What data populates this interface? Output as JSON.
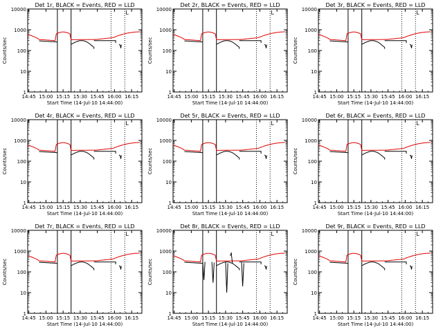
{
  "figure": {
    "y_axis_label": "Counts/sec",
    "x_axis_label": "Start Time (14-Jul-10 14:44:00)",
    "legend_mark": "L",
    "colors": {
      "events": "#000000",
      "lld": "#e00000",
      "axes": "#000000"
    }
  },
  "chart_data": [
    {
      "type": "line",
      "title": "Det 1r, BLACK = Events, RED = LLD",
      "xlabel": "Start Time (14-Jul-10 14:44:00)",
      "ylabel": "Counts/sec",
      "y_scale": "log",
      "ylim": [
        1,
        10000
      ],
      "y_ticks": [
        "1",
        "10",
        "100",
        "1000",
        "10000"
      ],
      "x_ticks": [
        "14:45",
        "15:00",
        "15:15",
        "15:30",
        "15:45",
        "16:00",
        "16:15"
      ],
      "series": [
        {
          "name": "Events",
          "color": "#000000"
        },
        {
          "name": "LLD",
          "color": "#e00000"
        }
      ],
      "variant": 0
    },
    {
      "type": "line",
      "title": "Det 2r, BLACK = Events, RED = LLD",
      "xlabel": "Start Time (14-Jul-10 14:44:00)",
      "ylabel": "Counts/sec",
      "y_scale": "log",
      "ylim": [
        1,
        10000
      ],
      "y_ticks": [
        "1",
        "10",
        "100",
        "1000",
        "10000"
      ],
      "x_ticks": [
        "14:45",
        "15:00",
        "15:15",
        "15:30",
        "15:45",
        "16:00",
        "16:15"
      ],
      "series": [
        {
          "name": "Events",
          "color": "#000000"
        },
        {
          "name": "LLD",
          "color": "#e00000"
        }
      ],
      "variant": 0
    },
    {
      "type": "line",
      "title": "Det 3r, BLACK = Events, RED = LLD",
      "xlabel": "Start Time (14-Jul-10 14:44:00)",
      "ylabel": "Counts/sec",
      "y_scale": "log",
      "ylim": [
        1,
        10000
      ],
      "y_ticks": [
        "1",
        "10",
        "100",
        "1000",
        "10000"
      ],
      "x_ticks": [
        "14:45",
        "15:00",
        "15:15",
        "15:30",
        "15:45",
        "16:00",
        "16:15"
      ],
      "series": [
        {
          "name": "Events",
          "color": "#000000"
        },
        {
          "name": "LLD",
          "color": "#e00000"
        }
      ],
      "variant": 0
    },
    {
      "type": "line",
      "title": "Det 4r, BLACK = Events, RED = LLD",
      "xlabel": "Start Time (14-Jul-10 14:44:00)",
      "ylabel": "Counts/sec",
      "y_scale": "log",
      "ylim": [
        1,
        10000
      ],
      "y_ticks": [
        "1",
        "10",
        "100",
        "1000",
        "10000"
      ],
      "x_ticks": [
        "14:45",
        "15:00",
        "15:15",
        "15:30",
        "15:45",
        "16:00",
        "16:15"
      ],
      "series": [
        {
          "name": "Events",
          "color": "#000000"
        },
        {
          "name": "LLD",
          "color": "#e00000"
        }
      ],
      "variant": 0
    },
    {
      "type": "line",
      "title": "Det 5r, BLACK = Events, RED = LLD",
      "xlabel": "Start Time (14-Jul-10 14:44:00)",
      "ylabel": "Counts/sec",
      "y_scale": "log",
      "ylim": [
        1,
        10000
      ],
      "y_ticks": [
        "1",
        "10",
        "100",
        "1000",
        "10000"
      ],
      "x_ticks": [
        "14:45",
        "15:00",
        "15:15",
        "15:30",
        "15:45",
        "16:00",
        "16:15"
      ],
      "series": [
        {
          "name": "Events",
          "color": "#000000"
        },
        {
          "name": "LLD",
          "color": "#e00000"
        }
      ],
      "variant": 0
    },
    {
      "type": "line",
      "title": "Det 6r, BLACK = Events, RED = LLD",
      "xlabel": "Start Time (14-Jul-10 14:44:00)",
      "ylabel": "Counts/sec",
      "y_scale": "log",
      "ylim": [
        1,
        10000
      ],
      "y_ticks": [
        "1",
        "10",
        "100",
        "1000",
        "10000"
      ],
      "x_ticks": [
        "14:45",
        "15:00",
        "15:15",
        "15:30",
        "15:45",
        "16:00",
        "16:15"
      ],
      "series": [
        {
          "name": "Events",
          "color": "#000000"
        },
        {
          "name": "LLD",
          "color": "#e00000"
        }
      ],
      "variant": 0
    },
    {
      "type": "line",
      "title": "Det 7r, BLACK = Events, RED = LLD",
      "xlabel": "Start Time (14-Jul-10 14:44:00)",
      "ylabel": "Counts/sec",
      "y_scale": "log",
      "ylim": [
        1,
        10000
      ],
      "y_ticks": [
        "1",
        "10",
        "100",
        "1000",
        "10000"
      ],
      "x_ticks": [
        "14:45",
        "15:00",
        "15:15",
        "15:30",
        "15:45",
        "16:00",
        "16:15"
      ],
      "series": [
        {
          "name": "Events",
          "color": "#000000"
        },
        {
          "name": "LLD",
          "color": "#e00000"
        }
      ],
      "variant": 0
    },
    {
      "type": "line",
      "title": "Det 8r, BLACK = Events, RED = LLD",
      "xlabel": "Start Time (14-Jul-10 14:44:00)",
      "ylabel": "Counts/sec",
      "y_scale": "log",
      "ylim": [
        1,
        10000
      ],
      "y_ticks": [
        "1",
        "10",
        "100",
        "1000",
        "10000"
      ],
      "x_ticks": [
        "14:45",
        "15:00",
        "15:15",
        "15:30",
        "15:45",
        "16:00",
        "16:15"
      ],
      "series": [
        {
          "name": "Events",
          "color": "#000000"
        },
        {
          "name": "LLD",
          "color": "#e00000"
        }
      ],
      "variant": 1
    },
    {
      "type": "line",
      "title": "Det 9r, BLACK = Events, RED = LLD",
      "xlabel": "Start Time (14-Jul-10 14:44:00)",
      "ylabel": "Counts/sec",
      "y_scale": "log",
      "ylim": [
        1,
        10000
      ],
      "y_ticks": [
        "1",
        "10",
        "100",
        "1000",
        "10000"
      ],
      "x_ticks": [
        "14:45",
        "15:00",
        "15:15",
        "15:30",
        "15:45",
        "16:00",
        "16:15"
      ],
      "series": [
        {
          "name": "Events",
          "color": "#000000"
        },
        {
          "name": "LLD",
          "color": "#e00000"
        }
      ],
      "variant": 0
    }
  ]
}
